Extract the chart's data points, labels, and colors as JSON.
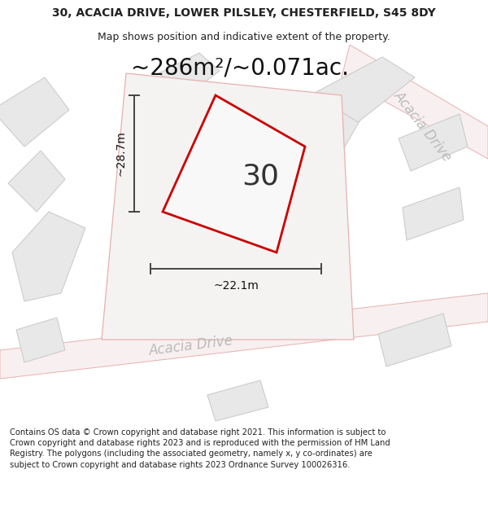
{
  "title_line1": "30, ACACIA DRIVE, LOWER PILSLEY, CHESTERFIELD, S45 8DY",
  "title_line2": "Map shows position and indicative extent of the property.",
  "area_text": "~286m²/~0.071ac.",
  "width_label": "~22.1m",
  "height_label": "~28.7m",
  "number_label": "30",
  "road_label_bottom": "Acacia Drive",
  "road_label_right": "Acacia Drive",
  "footer_text": "Contains OS data © Crown copyright and database right 2021. This information is subject to Crown copyright and database rights 2023 and is reproduced with the permission of HM Land Registry. The polygons (including the associated geometry, namely x, y co-ordinates) are subject to Crown copyright and database rights 2023 Ordnance Survey 100026316.",
  "highlight_color": "#cc0000",
  "parcel_fill": "#e8e8e8",
  "parcel_edge": "#cccccc",
  "road_line_color": "#e8b0b0",
  "road_text_color": "#bbbbbb",
  "dim_color": "#444444",
  "text_dark": "#222222",
  "map_bg": "#f8f8f8",
  "title_fontsize": 10,
  "subtitle_fontsize": 9,
  "area_fontsize": 20,
  "number_fontsize": 26,
  "label_fontsize": 10,
  "road_fontsize": 12,
  "footer_fontsize": 7.2
}
